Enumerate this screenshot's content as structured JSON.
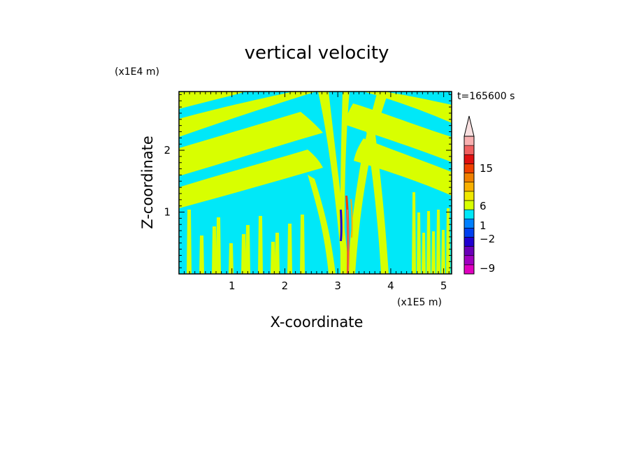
{
  "chart_data": {
    "type": "heatmap",
    "title": "vertical velocity",
    "xlabel": "X-coordinate",
    "ylabel": "Z-coordinate",
    "x_unit": "(x1E5 m)",
    "y_unit": "(x1E4 m)",
    "time_label": "t=165600 s",
    "xlim": [
      0,
      5.15
    ],
    "ylim": [
      0,
      2.95
    ],
    "x_ticks": [
      "1",
      "2",
      "3",
      "4",
      "5"
    ],
    "y_ticks": [
      "1",
      "2"
    ],
    "colorbar": {
      "tick_labels": [
        "15",
        "6",
        "1",
        "−2",
        "−9"
      ],
      "levels_bottom_to_top": [
        {
          "color": "#e000c0"
        },
        {
          "color": "#a000c0"
        },
        {
          "color": "#6a00b8"
        },
        {
          "color": "#2000d0"
        },
        {
          "color": "#0040f0"
        },
        {
          "color": "#0080ff"
        },
        {
          "color": "#00e8f8"
        },
        {
          "color": "#d8ff00"
        },
        {
          "color": "#f0e800"
        },
        {
          "color": "#f8b000"
        },
        {
          "color": "#f08000"
        },
        {
          "color": "#f04000"
        },
        {
          "color": "#e01010"
        },
        {
          "color": "#f06060"
        },
        {
          "color": "#f8b0b0"
        }
      ],
      "extend": "max"
    },
    "dominant_colors": {
      "background": "#00e8f8",
      "positive_band": "#d8ff00"
    }
  }
}
